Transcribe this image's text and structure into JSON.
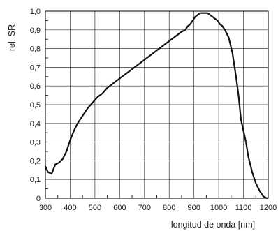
{
  "chart_data": {
    "type": "line",
    "title": "",
    "xlabel": "longitud de onda [nm]",
    "ylabel": "rel. SR",
    "xlim": [
      300,
      1200
    ],
    "ylim": [
      0,
      1.0
    ],
    "x_ticks": [
      300,
      400,
      500,
      600,
      700,
      800,
      900,
      1000,
      1100,
      1200
    ],
    "y_ticks": [
      0,
      0.1,
      0.2,
      0.3,
      0.4,
      0.5,
      0.6,
      0.7,
      0.8,
      0.9,
      1.0
    ],
    "x_tick_labels": [
      "300",
      "400",
      "500",
      "600",
      "700",
      "800",
      "900",
      "1000",
      "1100",
      "1200"
    ],
    "y_tick_labels": [
      "0",
      "0,1",
      "0,2",
      "0,3",
      "0,4",
      "0,5",
      "0,6",
      "0,7",
      "0,8",
      "0,9",
      "1,0"
    ],
    "grid": true,
    "series": [
      {
        "x": [
          300,
          310,
          325,
          340,
          355,
          370,
          385,
          400,
          415,
          430,
          450,
          470,
          490,
          510,
          530,
          550,
          570,
          590,
          610,
          630,
          650,
          670,
          690,
          710,
          730,
          750,
          770,
          790,
          810,
          830,
          850,
          865,
          875,
          885,
          895,
          905,
          915,
          925,
          935,
          945,
          955,
          965,
          975,
          985,
          995,
          1005,
          1015,
          1025,
          1040,
          1055,
          1070,
          1080,
          1090,
          1100,
          1110,
          1120,
          1135,
          1150,
          1165,
          1180,
          1195
        ],
        "y": [
          0.17,
          0.14,
          0.13,
          0.18,
          0.19,
          0.21,
          0.25,
          0.31,
          0.36,
          0.4,
          0.44,
          0.48,
          0.51,
          0.54,
          0.56,
          0.59,
          0.61,
          0.63,
          0.65,
          0.67,
          0.69,
          0.71,
          0.73,
          0.75,
          0.77,
          0.79,
          0.81,
          0.83,
          0.85,
          0.87,
          0.89,
          0.9,
          0.92,
          0.93,
          0.95,
          0.97,
          0.98,
          0.99,
          0.99,
          0.99,
          0.99,
          0.98,
          0.97,
          0.96,
          0.95,
          0.93,
          0.92,
          0.9,
          0.86,
          0.78,
          0.65,
          0.55,
          0.42,
          0.36,
          0.3,
          0.22,
          0.14,
          0.08,
          0.04,
          0.01,
          0.0
        ]
      }
    ]
  }
}
